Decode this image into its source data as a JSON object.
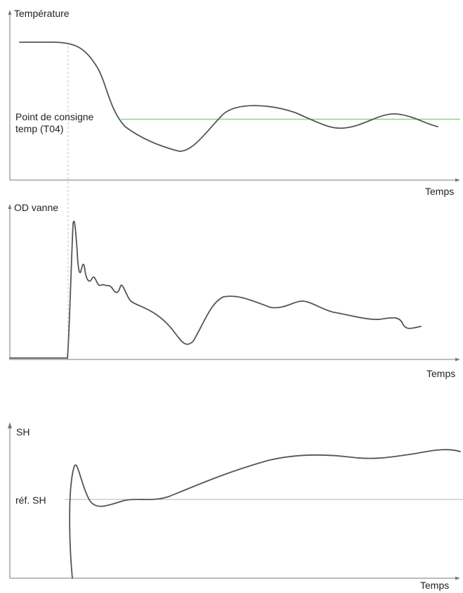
{
  "panels": {
    "temperature": {
      "title": "Température",
      "x_label": "Temps",
      "setpoint_label": "Point de consigne\ntemp (T04)"
    },
    "valve": {
      "title": "OD vanne",
      "x_label": "Temps"
    },
    "superheat": {
      "title": "SH",
      "reference_label": "réf. SH",
      "x_label": "Temps"
    }
  },
  "colors": {
    "axis": "#7a7a7a",
    "curve": "#555555",
    "setpoint_line": "#8fd48f",
    "reference_line": "#b5b5b5",
    "guide_line": "#bdbdbd",
    "text": "#222222"
  }
}
